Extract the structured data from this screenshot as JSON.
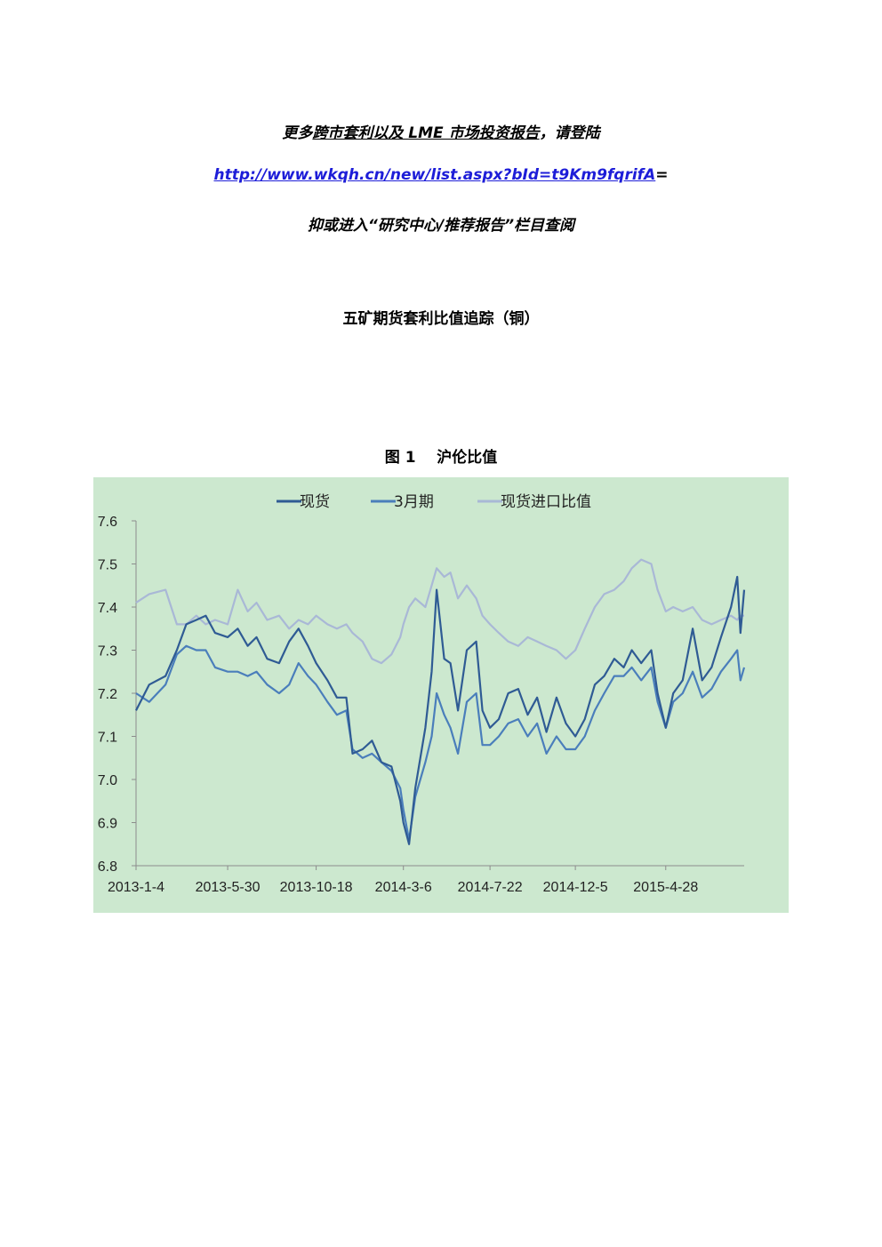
{
  "promo": {
    "line1_a": "更多",
    "line1_b": "跨市套利以及 LME 市场投资报告",
    "line1_c": "，请登陆",
    "link": "http://www.wkqh.cn/new/list.aspx?bId=t9Km9fqrifA",
    "link_suffix": "=",
    "line3": "抑或进入“研究中心/推荐报告”栏目查阅"
  },
  "doc_title": "五矿期货套利比值追踪（铜）",
  "figure_caption": "图 1    沪伦比值",
  "colors": {
    "chart_bg": "#cce8cf",
    "spot": "#2f5b94",
    "three_month": "#4a7ebb",
    "spot_import": "#a9b8d6",
    "link": "#1d1dd8"
  },
  "chart_data": {
    "type": "line",
    "title": "",
    "xlabel": "",
    "ylabel": "",
    "ylim": [
      6.8,
      7.6
    ],
    "yticks": [
      "6.8",
      "6.9",
      "7.0",
      "7.1",
      "7.2",
      "7.3",
      "7.4",
      "7.5",
      "7.6"
    ],
    "x_tick_labels": [
      "2013-1-4",
      "2013-5-30",
      "2013-10-18",
      "2014-3-6",
      "2014-7-22",
      "2014-12-5",
      "2015-4-28"
    ],
    "legend_position": "top",
    "grid": false,
    "x_start": "2013-1-4",
    "x_end": "2015-8-31",
    "series": [
      {
        "name": "现货",
        "points": [
          [
            "2013-1-4",
            7.16
          ],
          [
            "2013-1-25",
            7.22
          ],
          [
            "2013-2-20",
            7.24
          ],
          [
            "2013-3-10",
            7.3
          ],
          [
            "2013-3-25",
            7.36
          ],
          [
            "2013-4-10",
            7.37
          ],
          [
            "2013-4-25",
            7.38
          ],
          [
            "2013-5-10",
            7.34
          ],
          [
            "2013-5-30",
            7.33
          ],
          [
            "2013-6-15",
            7.35
          ],
          [
            "2013-7-1",
            7.31
          ],
          [
            "2013-7-15",
            7.33
          ],
          [
            "2013-8-1",
            7.28
          ],
          [
            "2013-8-20",
            7.27
          ],
          [
            "2013-9-5",
            7.32
          ],
          [
            "2013-9-20",
            7.35
          ],
          [
            "2013-10-5",
            7.31
          ],
          [
            "2013-10-18",
            7.27
          ],
          [
            "2013-11-5",
            7.23
          ],
          [
            "2013-11-20",
            7.19
          ],
          [
            "2013-12-5",
            7.19
          ],
          [
            "2013-12-15",
            7.06
          ],
          [
            "2013-12-31",
            7.07
          ],
          [
            "2014-1-15",
            7.09
          ],
          [
            "2014-1-30",
            7.04
          ],
          [
            "2014-2-15",
            7.03
          ],
          [
            "2014-3-1",
            6.95
          ],
          [
            "2014-3-6",
            6.9
          ],
          [
            "2014-3-15",
            6.85
          ],
          [
            "2014-3-25",
            6.98
          ],
          [
            "2014-4-10",
            7.12
          ],
          [
            "2014-4-20",
            7.25
          ],
          [
            "2014-4-28",
            7.44
          ],
          [
            "2014-5-10",
            7.28
          ],
          [
            "2014-5-20",
            7.27
          ],
          [
            "2014-6-1",
            7.16
          ],
          [
            "2014-6-15",
            7.3
          ],
          [
            "2014-6-30",
            7.32
          ],
          [
            "2014-7-10",
            7.16
          ],
          [
            "2014-7-22",
            7.12
          ],
          [
            "2014-8-5",
            7.14
          ],
          [
            "2014-8-20",
            7.2
          ],
          [
            "2014-9-5",
            7.21
          ],
          [
            "2014-9-20",
            7.15
          ],
          [
            "2014-10-5",
            7.19
          ],
          [
            "2014-10-20",
            7.11
          ],
          [
            "2014-11-5",
            7.19
          ],
          [
            "2014-11-20",
            7.13
          ],
          [
            "2014-12-5",
            7.1
          ],
          [
            "2014-12-20",
            7.14
          ],
          [
            "2015-1-5",
            7.22
          ],
          [
            "2015-1-20",
            7.24
          ],
          [
            "2015-2-5",
            7.28
          ],
          [
            "2015-2-20",
            7.26
          ],
          [
            "2015-3-5",
            7.3
          ],
          [
            "2015-3-20",
            7.27
          ],
          [
            "2015-4-5",
            7.3
          ],
          [
            "2015-4-15",
            7.2
          ],
          [
            "2015-4-28",
            7.12
          ],
          [
            "2015-5-10",
            7.2
          ],
          [
            "2015-5-25",
            7.23
          ],
          [
            "2015-6-10",
            7.35
          ],
          [
            "2015-6-25",
            7.23
          ],
          [
            "2015-7-10",
            7.26
          ],
          [
            "2015-7-25",
            7.33
          ],
          [
            "2015-8-10",
            7.4
          ],
          [
            "2015-8-20",
            7.47
          ],
          [
            "2015-8-25",
            7.34
          ],
          [
            "2015-8-31",
            7.44
          ]
        ]
      },
      {
        "name": "3月期",
        "points": [
          [
            "2013-1-4",
            7.2
          ],
          [
            "2013-1-25",
            7.18
          ],
          [
            "2013-2-20",
            7.22
          ],
          [
            "2013-3-10",
            7.29
          ],
          [
            "2013-3-25",
            7.31
          ],
          [
            "2013-4-10",
            7.3
          ],
          [
            "2013-4-25",
            7.3
          ],
          [
            "2013-5-10",
            7.26
          ],
          [
            "2013-5-30",
            7.25
          ],
          [
            "2013-6-15",
            7.25
          ],
          [
            "2013-7-1",
            7.24
          ],
          [
            "2013-7-15",
            7.25
          ],
          [
            "2013-8-1",
            7.22
          ],
          [
            "2013-8-20",
            7.2
          ],
          [
            "2013-9-5",
            7.22
          ],
          [
            "2013-9-20",
            7.27
          ],
          [
            "2013-10-5",
            7.24
          ],
          [
            "2013-10-18",
            7.22
          ],
          [
            "2013-11-5",
            7.18
          ],
          [
            "2013-11-20",
            7.15
          ],
          [
            "2013-12-5",
            7.16
          ],
          [
            "2013-12-15",
            7.07
          ],
          [
            "2013-12-31",
            7.05
          ],
          [
            "2014-1-15",
            7.06
          ],
          [
            "2014-1-30",
            7.04
          ],
          [
            "2014-2-15",
            7.02
          ],
          [
            "2014-3-1",
            6.98
          ],
          [
            "2014-3-6",
            6.93
          ],
          [
            "2014-3-15",
            6.86
          ],
          [
            "2014-3-25",
            6.96
          ],
          [
            "2014-4-10",
            7.04
          ],
          [
            "2014-4-20",
            7.1
          ],
          [
            "2014-4-28",
            7.2
          ],
          [
            "2014-5-10",
            7.15
          ],
          [
            "2014-5-20",
            7.12
          ],
          [
            "2014-6-1",
            7.06
          ],
          [
            "2014-6-15",
            7.18
          ],
          [
            "2014-6-30",
            7.2
          ],
          [
            "2014-7-10",
            7.08
          ],
          [
            "2014-7-22",
            7.08
          ],
          [
            "2014-8-5",
            7.1
          ],
          [
            "2014-8-20",
            7.13
          ],
          [
            "2014-9-5",
            7.14
          ],
          [
            "2014-9-20",
            7.1
          ],
          [
            "2014-10-5",
            7.13
          ],
          [
            "2014-10-20",
            7.06
          ],
          [
            "2014-11-5",
            7.1
          ],
          [
            "2014-11-20",
            7.07
          ],
          [
            "2014-12-5",
            7.07
          ],
          [
            "2014-12-20",
            7.1
          ],
          [
            "2015-1-5",
            7.16
          ],
          [
            "2015-1-20",
            7.2
          ],
          [
            "2015-2-5",
            7.24
          ],
          [
            "2015-2-20",
            7.24
          ],
          [
            "2015-3-5",
            7.26
          ],
          [
            "2015-3-20",
            7.23
          ],
          [
            "2015-4-5",
            7.26
          ],
          [
            "2015-4-15",
            7.18
          ],
          [
            "2015-4-28",
            7.12
          ],
          [
            "2015-5-10",
            7.18
          ],
          [
            "2015-5-25",
            7.2
          ],
          [
            "2015-6-10",
            7.25
          ],
          [
            "2015-6-25",
            7.19
          ],
          [
            "2015-7-10",
            7.21
          ],
          [
            "2015-7-25",
            7.25
          ],
          [
            "2015-8-10",
            7.28
          ],
          [
            "2015-8-20",
            7.3
          ],
          [
            "2015-8-25",
            7.23
          ],
          [
            "2015-8-31",
            7.26
          ]
        ]
      },
      {
        "name": "现货进口比值",
        "points": [
          [
            "2013-1-4",
            7.41
          ],
          [
            "2013-1-25",
            7.43
          ],
          [
            "2013-2-20",
            7.44
          ],
          [
            "2013-3-10",
            7.36
          ],
          [
            "2013-3-25",
            7.36
          ],
          [
            "2013-4-10",
            7.38
          ],
          [
            "2013-4-25",
            7.36
          ],
          [
            "2013-5-10",
            7.37
          ],
          [
            "2013-5-30",
            7.36
          ],
          [
            "2013-6-15",
            7.44
          ],
          [
            "2013-7-1",
            7.39
          ],
          [
            "2013-7-15",
            7.41
          ],
          [
            "2013-8-1",
            7.37
          ],
          [
            "2013-8-20",
            7.38
          ],
          [
            "2013-9-5",
            7.35
          ],
          [
            "2013-9-20",
            7.37
          ],
          [
            "2013-10-5",
            7.36
          ],
          [
            "2013-10-18",
            7.38
          ],
          [
            "2013-11-5",
            7.36
          ],
          [
            "2013-11-20",
            7.35
          ],
          [
            "2013-12-5",
            7.36
          ],
          [
            "2013-12-15",
            7.34
          ],
          [
            "2013-12-31",
            7.32
          ],
          [
            "2014-1-15",
            7.28
          ],
          [
            "2014-1-30",
            7.27
          ],
          [
            "2014-2-15",
            7.29
          ],
          [
            "2014-3-1",
            7.33
          ],
          [
            "2014-3-6",
            7.36
          ],
          [
            "2014-3-15",
            7.4
          ],
          [
            "2014-3-25",
            7.42
          ],
          [
            "2014-4-10",
            7.4
          ],
          [
            "2014-4-20",
            7.45
          ],
          [
            "2014-4-28",
            7.49
          ],
          [
            "2014-5-10",
            7.47
          ],
          [
            "2014-5-20",
            7.48
          ],
          [
            "2014-6-1",
            7.42
          ],
          [
            "2014-6-15",
            7.45
          ],
          [
            "2014-6-30",
            7.42
          ],
          [
            "2014-7-10",
            7.38
          ],
          [
            "2014-7-22",
            7.36
          ],
          [
            "2014-8-5",
            7.34
          ],
          [
            "2014-8-20",
            7.32
          ],
          [
            "2014-9-5",
            7.31
          ],
          [
            "2014-9-20",
            7.33
          ],
          [
            "2014-10-5",
            7.32
          ],
          [
            "2014-10-20",
            7.31
          ],
          [
            "2014-11-5",
            7.3
          ],
          [
            "2014-11-20",
            7.28
          ],
          [
            "2014-12-5",
            7.3
          ],
          [
            "2014-12-20",
            7.35
          ],
          [
            "2015-1-5",
            7.4
          ],
          [
            "2015-1-20",
            7.43
          ],
          [
            "2015-2-5",
            7.44
          ],
          [
            "2015-2-20",
            7.46
          ],
          [
            "2015-3-5",
            7.49
          ],
          [
            "2015-3-20",
            7.51
          ],
          [
            "2015-4-5",
            7.5
          ],
          [
            "2015-4-15",
            7.44
          ],
          [
            "2015-4-28",
            7.39
          ],
          [
            "2015-5-10",
            7.4
          ],
          [
            "2015-5-25",
            7.39
          ],
          [
            "2015-6-10",
            7.4
          ],
          [
            "2015-6-25",
            7.37
          ],
          [
            "2015-7-10",
            7.36
          ],
          [
            "2015-7-25",
            7.37
          ],
          [
            "2015-8-10",
            7.38
          ],
          [
            "2015-8-20",
            7.37
          ],
          [
            "2015-8-25",
            7.38
          ],
          [
            "2015-8-31",
            7.38
          ]
        ]
      }
    ]
  }
}
